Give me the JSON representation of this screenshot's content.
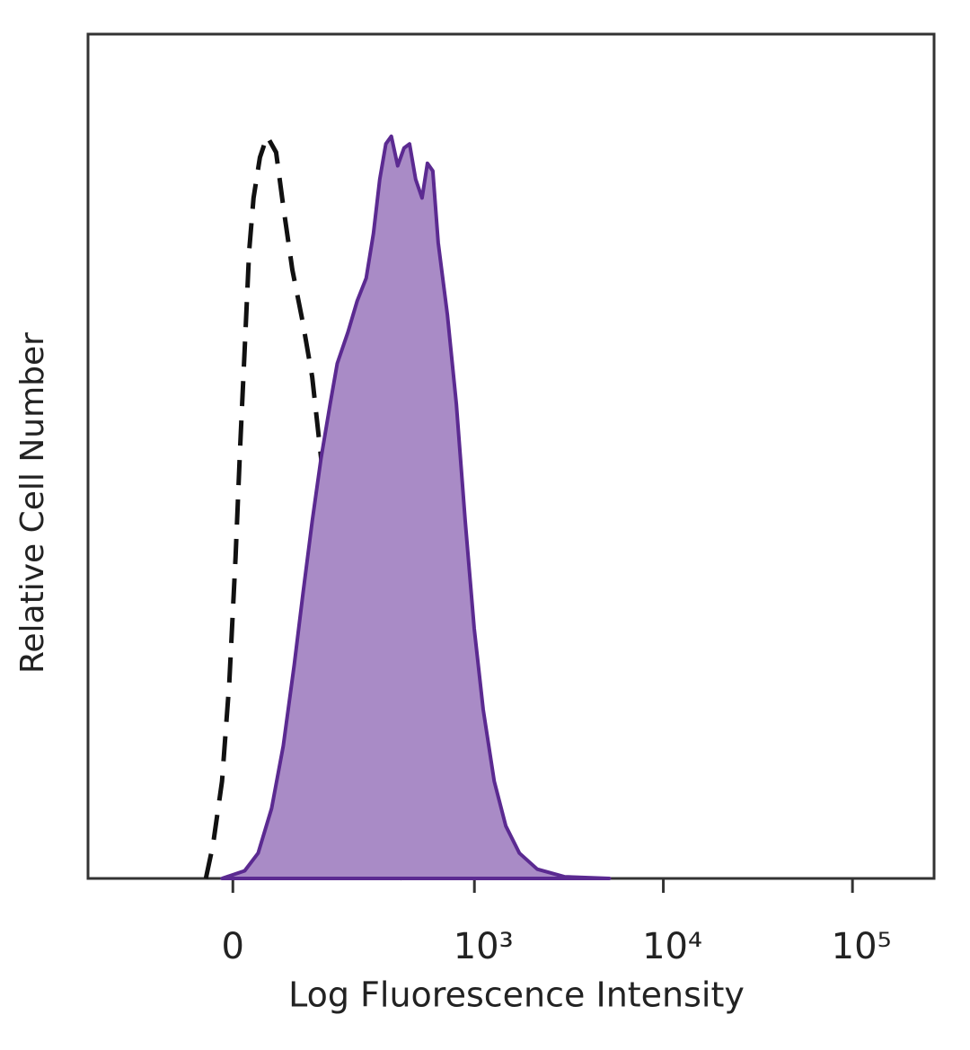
{
  "chart_data": {
    "type": "histogram-overlay",
    "xlabel": "Log Fluorescence Intensity",
    "ylabel": "Relative Cell Number",
    "xscale": "biexponential",
    "xlim": [
      -300,
      270000
    ],
    "xticks": [
      0,
      {
        "value": 1000,
        "label": "10³"
      },
      {
        "value": 10000,
        "label": "10⁴"
      },
      {
        "value": 100000,
        "label": "10⁵"
      }
    ],
    "ylim": [
      0,
      100
    ],
    "series": [
      {
        "color": "#111111",
        "style": "dashed",
        "x": [
          -35.5,
          -25.8,
          -14.0,
          -4.6,
          3.5,
          9.3,
          15.2,
          21.1,
          27.0,
          35.5,
          45.5,
          58.4,
          69.2,
          83.6,
          102,
          119,
          137,
          153,
          174,
          202,
          234,
          274,
          319,
          365,
          410
        ],
        "values": [
          0,
          4.0,
          11.5,
          23.2,
          38.1,
          50.9,
          62.6,
          74.3,
          80.6,
          85.4,
          87.9,
          86.0,
          79.6,
          72.1,
          65.7,
          59.4,
          49.8,
          40.2,
          31.7,
          23.2,
          13.6,
          7.2,
          3.0,
          0.6,
          0
        ]
      },
      {
        "color": "#5b2a91",
        "fill": "#a98bc6",
        "style": "filled",
        "x": [
          -14.0,
          15.2,
          33.1,
          51.9,
          69.2,
          86.7,
          102,
          119,
          137,
          157,
          174,
          202,
          229,
          258,
          284,
          308,
          333,
          357,
          387,
          419,
          449,
          485,
          525,
          561,
          600,
          641,
          718,
          801,
          894,
          998,
          1114,
          1274,
          1469,
          1732,
          2155,
          2998,
          5180
        ],
        "values": [
          0,
          0.9,
          3.0,
          8.3,
          15.7,
          25.3,
          33.8,
          42.3,
          49.8,
          56.2,
          61.0,
          64.7,
          68.4,
          71.1,
          76.4,
          82.8,
          87.0,
          87.9,
          84.4,
          86.5,
          87.0,
          82.8,
          80.6,
          84.7,
          83.8,
          75.3,
          66.8,
          56.2,
          42.3,
          29.6,
          20.0,
          11.5,
          6.2,
          3.0,
          1.1,
          0.2,
          0
        ]
      }
    ]
  }
}
